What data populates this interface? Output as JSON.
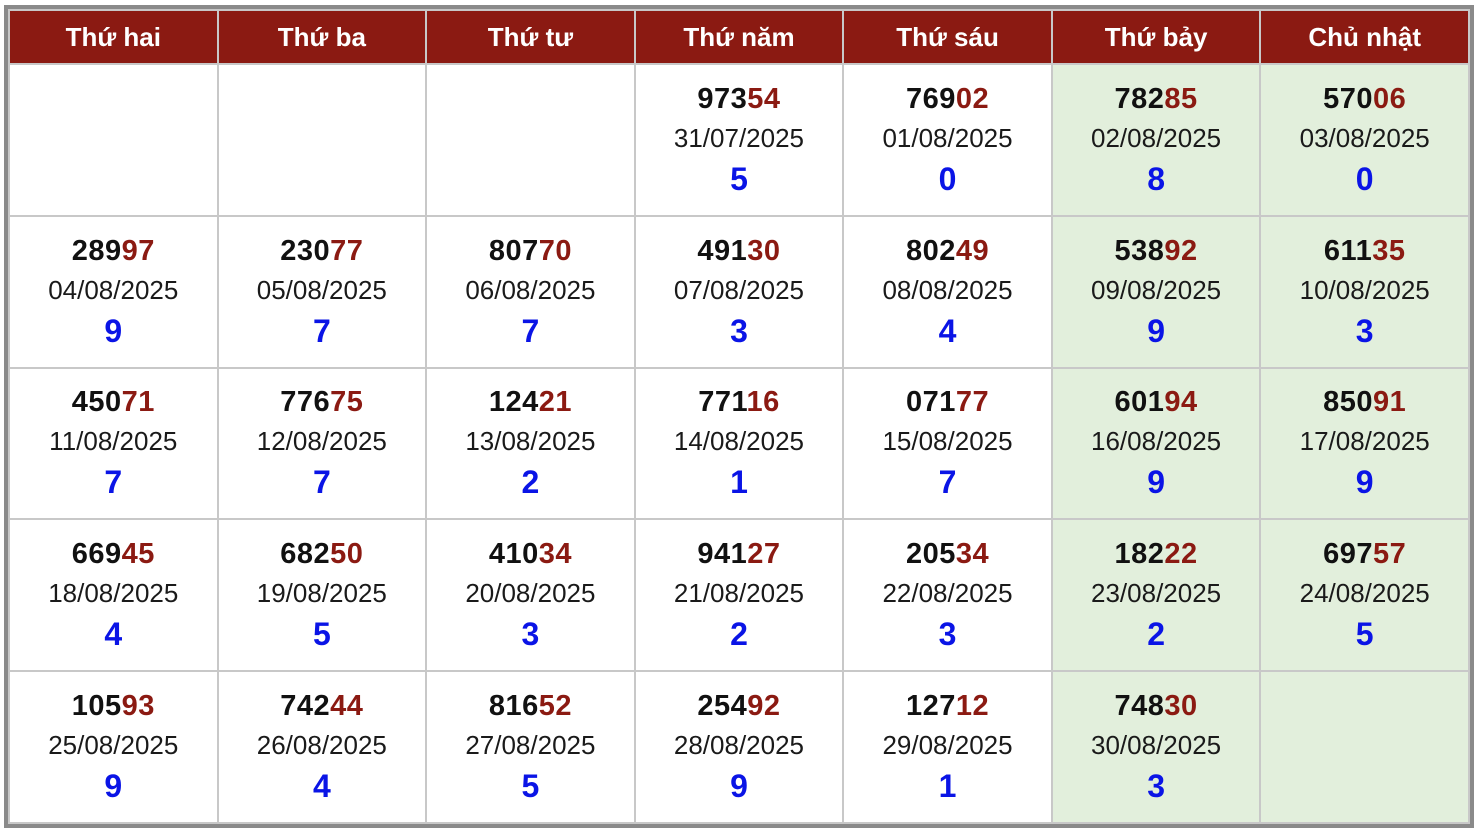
{
  "colors": {
    "header_bg": "#8b1a12",
    "header_text": "#ffffff",
    "number_prefix": "#111111",
    "number_suffix": "#8b1a12",
    "digit": "#0a14e6",
    "weekend_bg": "#e2efdc"
  },
  "header": [
    "Thứ hai",
    "Thứ ba",
    "Thứ tư",
    "Thứ năm",
    "Thứ sáu",
    "Thứ bảy",
    "Chủ nhật"
  ],
  "rows": [
    [
      null,
      null,
      null,
      {
        "num_prefix": "973",
        "num_suffix": "54",
        "date": "31/07/2025",
        "digit": "5"
      },
      {
        "num_prefix": "769",
        "num_suffix": "02",
        "date": "01/08/2025",
        "digit": "0"
      },
      {
        "num_prefix": "782",
        "num_suffix": "85",
        "date": "02/08/2025",
        "digit": "8"
      },
      {
        "num_prefix": "570",
        "num_suffix": "06",
        "date": "03/08/2025",
        "digit": "0"
      }
    ],
    [
      {
        "num_prefix": "289",
        "num_suffix": "97",
        "date": "04/08/2025",
        "digit": "9"
      },
      {
        "num_prefix": "230",
        "num_suffix": "77",
        "date": "05/08/2025",
        "digit": "7"
      },
      {
        "num_prefix": "807",
        "num_suffix": "70",
        "date": "06/08/2025",
        "digit": "7"
      },
      {
        "num_prefix": "491",
        "num_suffix": "30",
        "date": "07/08/2025",
        "digit": "3"
      },
      {
        "num_prefix": "802",
        "num_suffix": "49",
        "date": "08/08/2025",
        "digit": "4"
      },
      {
        "num_prefix": "538",
        "num_suffix": "92",
        "date": "09/08/2025",
        "digit": "9"
      },
      {
        "num_prefix": "611",
        "num_suffix": "35",
        "date": "10/08/2025",
        "digit": "3"
      }
    ],
    [
      {
        "num_prefix": "450",
        "num_suffix": "71",
        "date": "11/08/2025",
        "digit": "7"
      },
      {
        "num_prefix": "776",
        "num_suffix": "75",
        "date": "12/08/2025",
        "digit": "7"
      },
      {
        "num_prefix": "124",
        "num_suffix": "21",
        "date": "13/08/2025",
        "digit": "2"
      },
      {
        "num_prefix": "771",
        "num_suffix": "16",
        "date": "14/08/2025",
        "digit": "1"
      },
      {
        "num_prefix": "071",
        "num_suffix": "77",
        "date": "15/08/2025",
        "digit": "7"
      },
      {
        "num_prefix": "601",
        "num_suffix": "94",
        "date": "16/08/2025",
        "digit": "9"
      },
      {
        "num_prefix": "850",
        "num_suffix": "91",
        "date": "17/08/2025",
        "digit": "9"
      }
    ],
    [
      {
        "num_prefix": "669",
        "num_suffix": "45",
        "date": "18/08/2025",
        "digit": "4"
      },
      {
        "num_prefix": "682",
        "num_suffix": "50",
        "date": "19/08/2025",
        "digit": "5"
      },
      {
        "num_prefix": "410",
        "num_suffix": "34",
        "date": "20/08/2025",
        "digit": "3"
      },
      {
        "num_prefix": "941",
        "num_suffix": "27",
        "date": "21/08/2025",
        "digit": "2"
      },
      {
        "num_prefix": "205",
        "num_suffix": "34",
        "date": "22/08/2025",
        "digit": "3"
      },
      {
        "num_prefix": "182",
        "num_suffix": "22",
        "date": "23/08/2025",
        "digit": "2"
      },
      {
        "num_prefix": "697",
        "num_suffix": "57",
        "date": "24/08/2025",
        "digit": "5"
      }
    ],
    [
      {
        "num_prefix": "105",
        "num_suffix": "93",
        "date": "25/08/2025",
        "digit": "9"
      },
      {
        "num_prefix": "742",
        "num_suffix": "44",
        "date": "26/08/2025",
        "digit": "4"
      },
      {
        "num_prefix": "816",
        "num_suffix": "52",
        "date": "27/08/2025",
        "digit": "5"
      },
      {
        "num_prefix": "254",
        "num_suffix": "92",
        "date": "28/08/2025",
        "digit": "9"
      },
      {
        "num_prefix": "127",
        "num_suffix": "12",
        "date": "29/08/2025",
        "digit": "1"
      },
      {
        "num_prefix": "748",
        "num_suffix": "30",
        "date": "30/08/2025",
        "digit": "3"
      },
      null
    ]
  ]
}
